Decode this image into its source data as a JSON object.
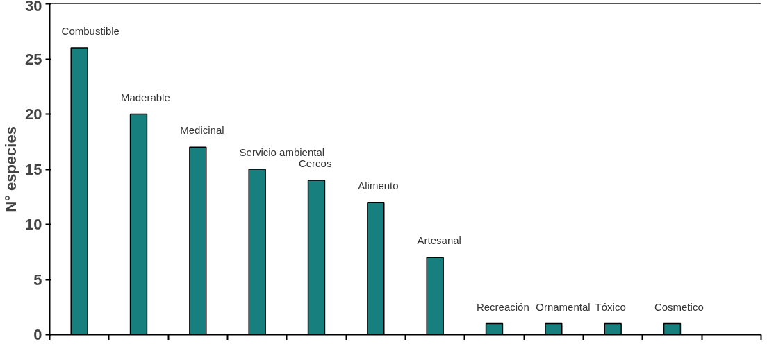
{
  "chart_data": {
    "type": "bar",
    "ylabel": "N° especies",
    "categories": [
      "Combustible",
      "Maderable",
      "Medicinal",
      "Servicio ambiental",
      "Cercos",
      "Alimento",
      "Artesanal",
      "Recreación",
      "Ornamental",
      "Tóxico",
      "Cosmetico"
    ],
    "values": [
      26,
      20,
      17,
      15,
      14,
      12,
      7,
      1,
      1,
      1,
      1
    ],
    "color": "#17807e",
    "ylim": [
      0,
      30
    ],
    "yticks": [
      0,
      5,
      10,
      15,
      20,
      25,
      30
    ],
    "grid": false
  }
}
